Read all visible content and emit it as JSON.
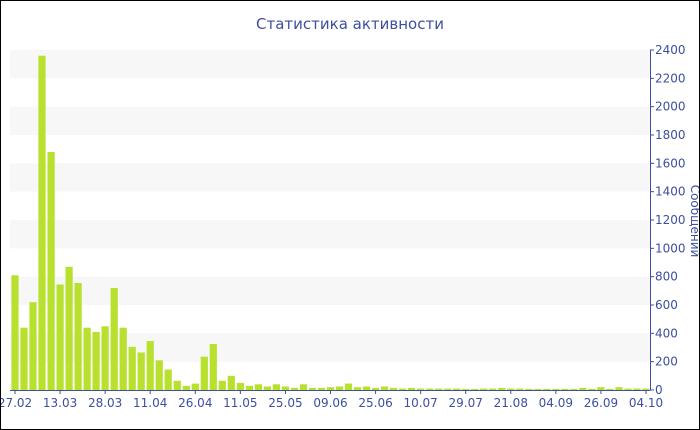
{
  "chart_data": {
    "type": "bar",
    "title": "Статистика активности",
    "ylabel": "Сообщений",
    "xlabel": "",
    "ylim": [
      0,
      2400
    ],
    "yticks": [
      0,
      200,
      400,
      600,
      800,
      1000,
      1200,
      1400,
      1600,
      1800,
      2000,
      2200,
      2400
    ],
    "y_axis_side": "right",
    "grid": "alternating horizontal bands",
    "bar_color": "#b8e02e",
    "axis_color": "#3d4f9f",
    "xtick_labels": [
      "27.02",
      "13.03",
      "28.03",
      "11.04",
      "26.04",
      "11.05",
      "25.05",
      "09.06",
      "25.06",
      "10.07",
      "29.07",
      "21.08",
      "04.09",
      "26.09",
      "04.10"
    ],
    "values": [
      810,
      440,
      620,
      2360,
      1680,
      745,
      870,
      755,
      440,
      410,
      450,
      720,
      440,
      305,
      265,
      345,
      210,
      145,
      65,
      30,
      45,
      235,
      325,
      65,
      100,
      50,
      30,
      40,
      25,
      40,
      25,
      15,
      40,
      15,
      15,
      20,
      25,
      45,
      20,
      25,
      15,
      25,
      15,
      10,
      15,
      10,
      10,
      10,
      10,
      10,
      8,
      8,
      10,
      10,
      15,
      10,
      10,
      8,
      8,
      8,
      8,
      8,
      8,
      15,
      8,
      20,
      8,
      20,
      10,
      10,
      10
    ]
  }
}
